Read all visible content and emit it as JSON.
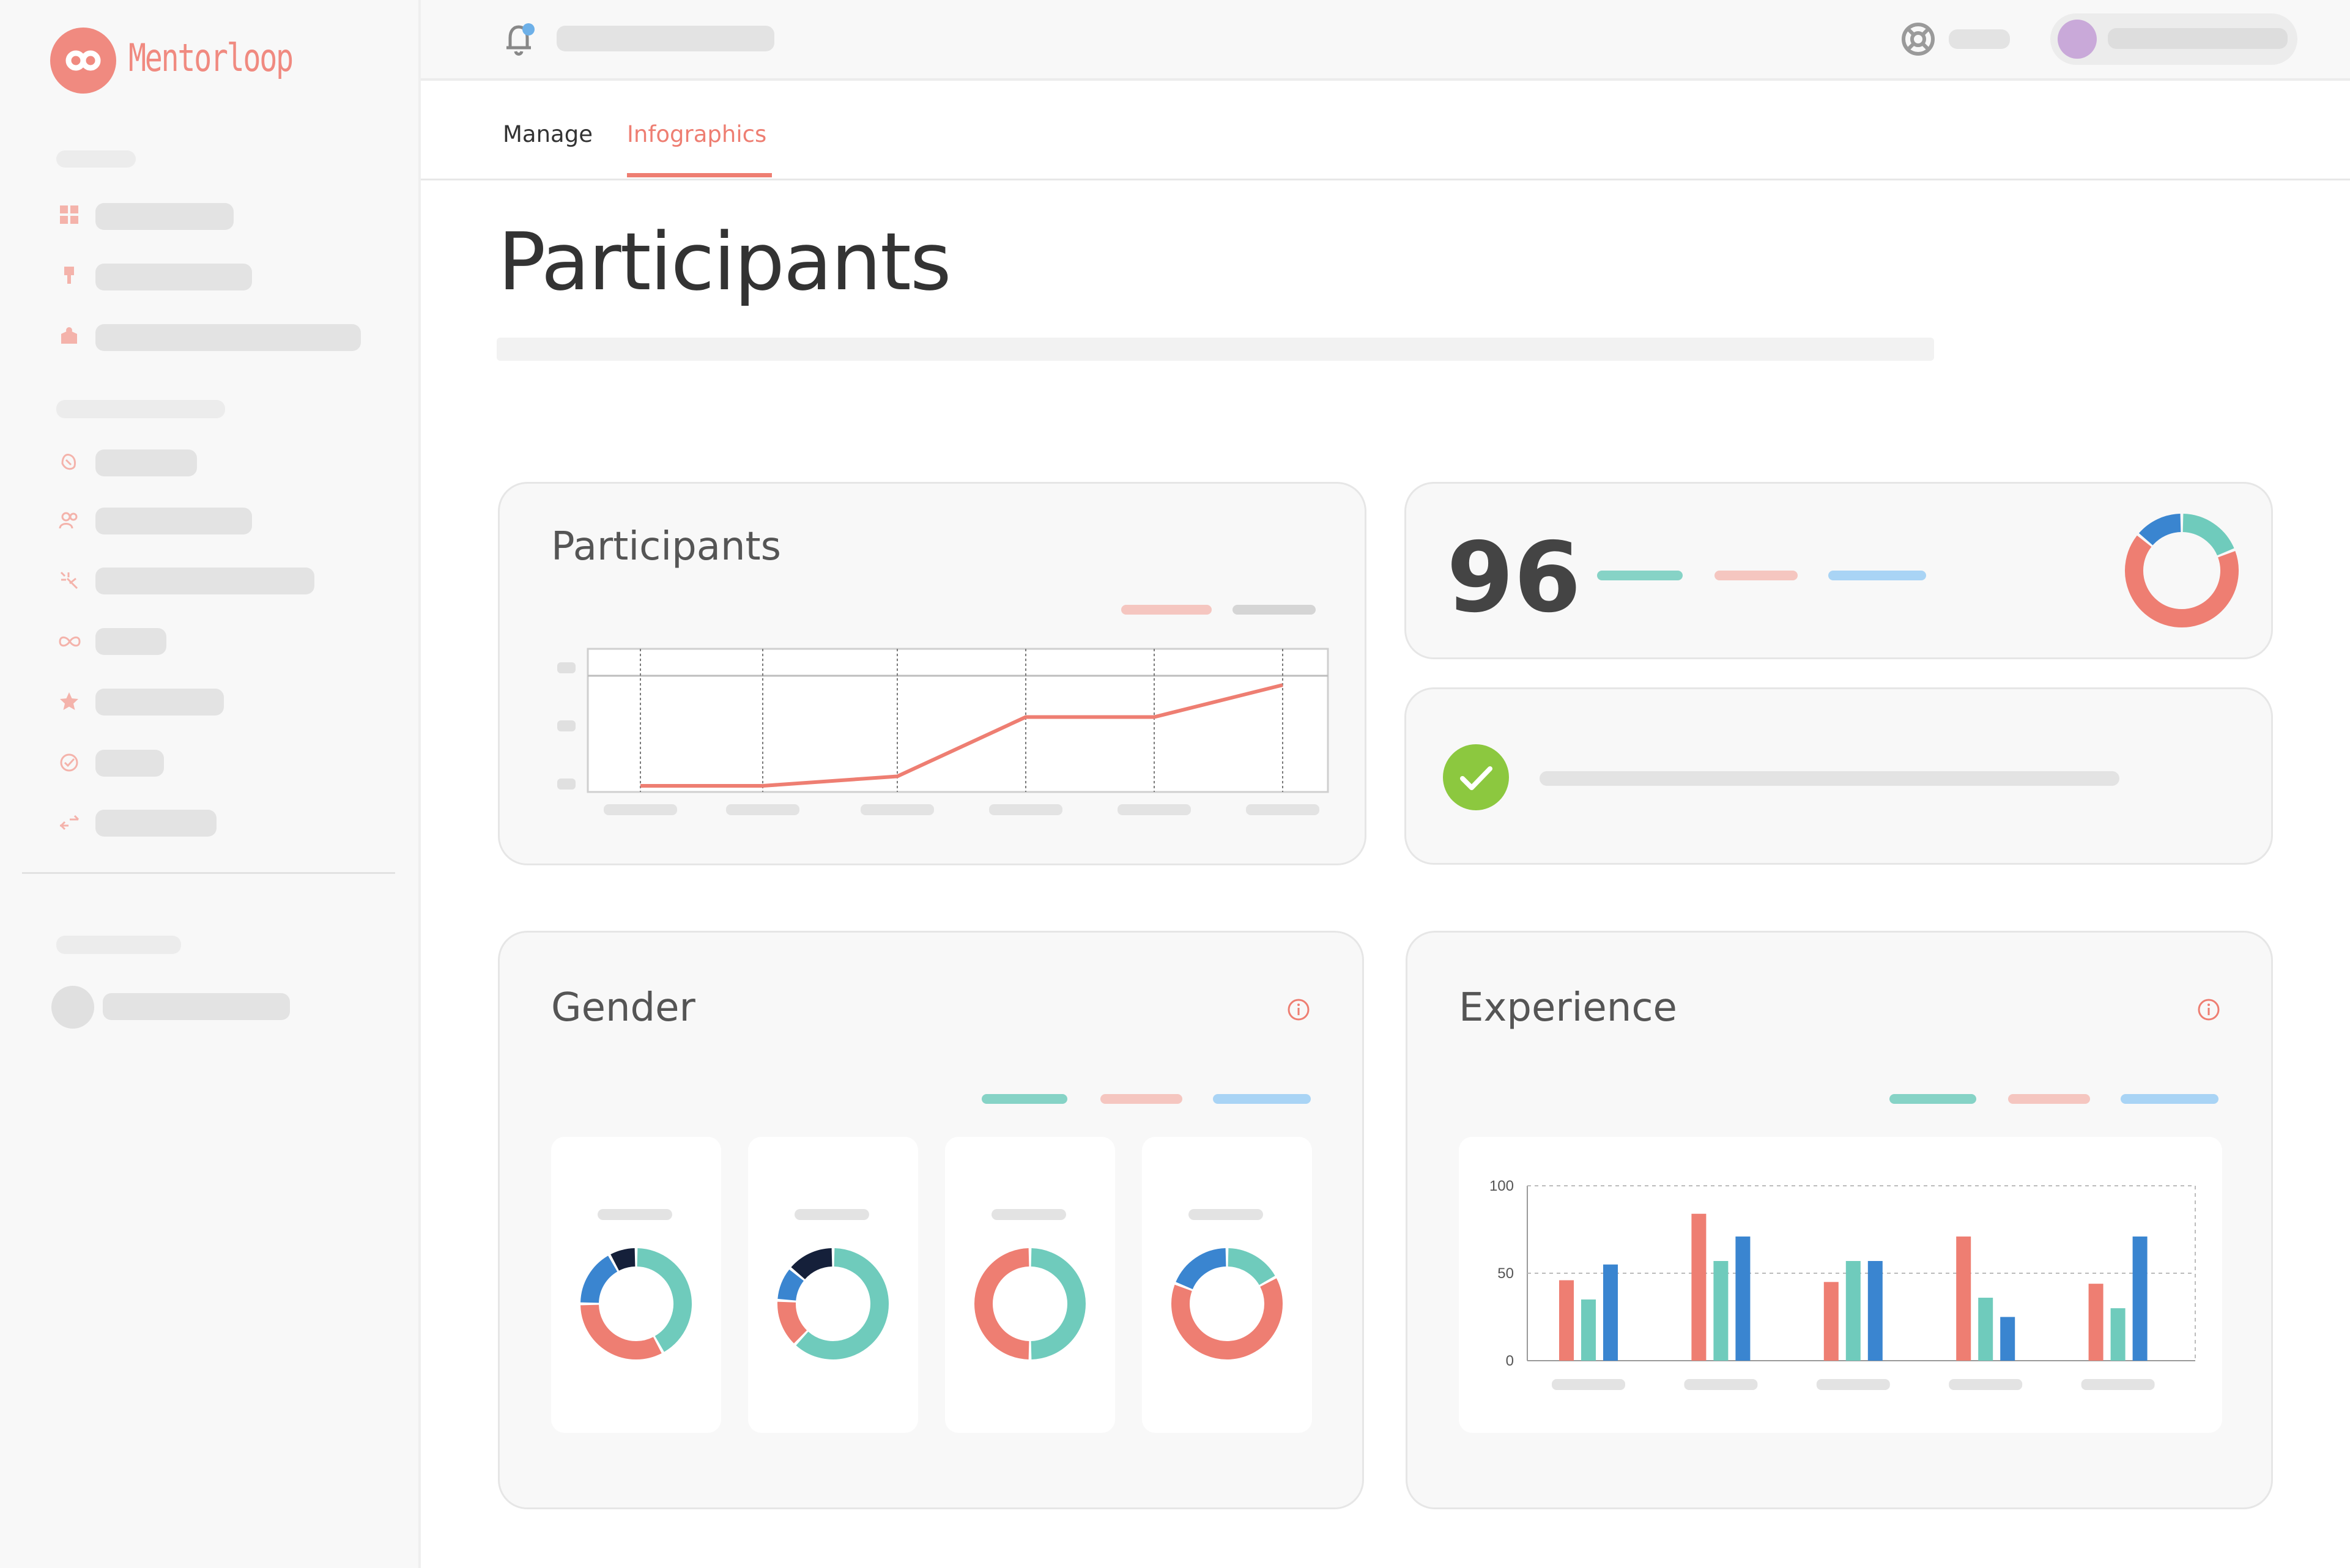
{
  "brand": {
    "name": "Mentorloop",
    "color": "#f08a80"
  },
  "tabs": [
    {
      "label": "Manage",
      "active": false
    },
    {
      "label": "Infographics",
      "active": true
    }
  ],
  "page": {
    "title": "Participants"
  },
  "participants_card": {
    "title": "Participants"
  },
  "stat_card": {
    "value": "96"
  },
  "gender_card": {
    "title": "Gender"
  },
  "experience_card": {
    "title": "Experience"
  },
  "icons": [
    "notification-bell-icon",
    "help-lifebuoy-icon",
    "dashboard-icon",
    "award-icon",
    "box-icon",
    "hand-wave-icon",
    "people-icon",
    "sparkle-icon",
    "infinity-icon",
    "star-icon",
    "check-circle-icon",
    "shuffle-icon",
    "info-icon"
  ],
  "colors": {
    "accent": "#ee7e72",
    "teal": "#6fcbbc",
    "blue": "#3a85d0",
    "navy": "#15203a",
    "green": "#8cc83f"
  },
  "chart_data": [
    {
      "type": "line",
      "title": "Participants",
      "x": [
        1,
        2,
        3,
        4,
        5,
        6
      ],
      "series": [
        {
          "values": [
            0,
            0,
            0.08,
            0.58,
            0.58,
            0.85
          ]
        }
      ],
      "xlabel": "",
      "ylabel": "",
      "grid": true
    },
    {
      "type": "pie",
      "title": "Gender",
      "donuts": [
        {
          "slices": [
            {
              "color": "#6fcbbc",
              "value": 0.42
            },
            {
              "color": "#ee7e72",
              "value": 0.33
            },
            {
              "color": "#3a85d0",
              "value": 0.17
            },
            {
              "color": "#15203a",
              "value": 0.08
            }
          ]
        },
        {
          "slices": [
            {
              "color": "#6fcbbc",
              "value": 0.62
            },
            {
              "color": "#ee7e72",
              "value": 0.14
            },
            {
              "color": "#3a85d0",
              "value": 0.1
            },
            {
              "color": "#15203a",
              "value": 0.14
            }
          ]
        },
        {
          "slices": [
            {
              "color": "#6fcbbc",
              "value": 0.5
            },
            {
              "color": "#ee7e72",
              "value": 0.5
            }
          ]
        },
        {
          "slices": [
            {
              "color": "#6fcbbc",
              "value": 0.17
            },
            {
              "color": "#ee7e72",
              "value": 0.64
            },
            {
              "color": "#3a85d0",
              "value": 0.19
            }
          ]
        }
      ]
    },
    {
      "type": "bar",
      "title": "Experience",
      "categories": [
        "",
        "",
        "",
        "",
        ""
      ],
      "series": [
        {
          "color": "#ee7e72",
          "values": [
            46,
            84,
            45,
            71,
            44
          ]
        },
        {
          "color": "#6fcbbc",
          "values": [
            35,
            57,
            57,
            36,
            30
          ]
        },
        {
          "color": "#3a85d0",
          "values": [
            55,
            71,
            57,
            25,
            71
          ]
        }
      ],
      "yticks": [
        0,
        50,
        100
      ],
      "ylim": [
        0,
        100
      ]
    },
    {
      "type": "pie",
      "title": "",
      "slices": [
        {
          "color": "#6fcbbc",
          "value": 0.19
        },
        {
          "color": "#ee7e72",
          "value": 0.67
        },
        {
          "color": "#3a85d0",
          "value": 0.14
        }
      ]
    }
  ]
}
